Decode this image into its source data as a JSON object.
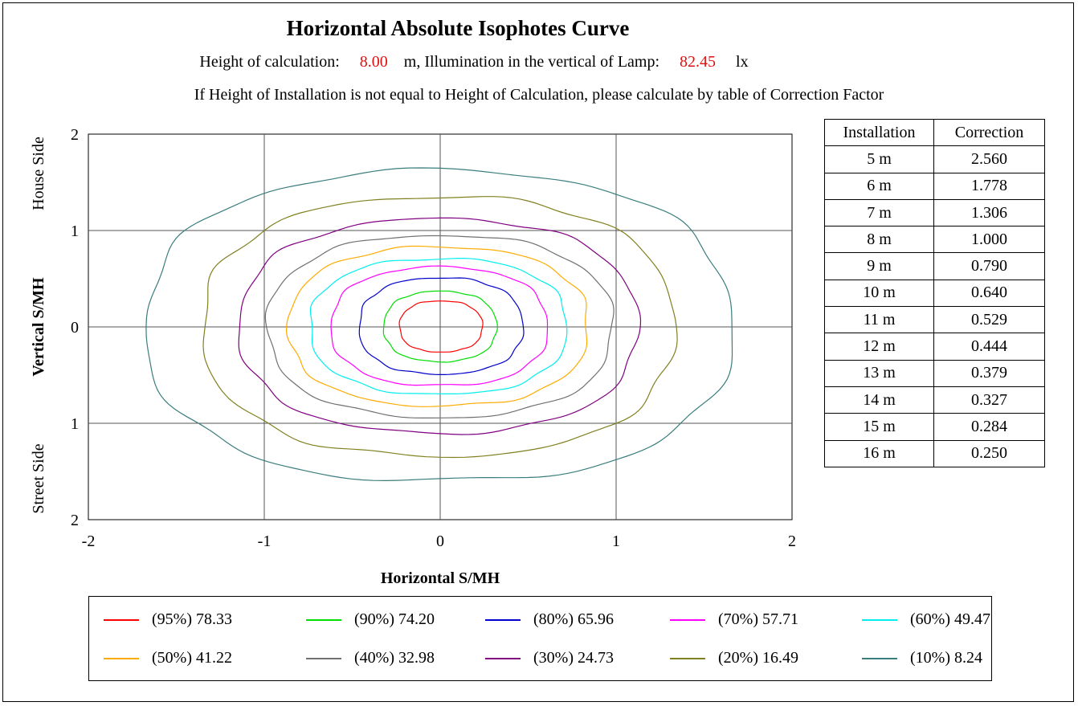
{
  "header": {
    "title": "Horizontal Absolute Isophotes Curve",
    "calc_prefix": "Height of calculation:",
    "calc_height": "8.00",
    "calc_mid": "m, Illumination in the vertical of Lamp:",
    "lamp_illum": "82.45",
    "calc_unit": "lx",
    "note": "If Height of Installation is not equal to Height of Calculation, please calculate by table of Correction Factor"
  },
  "colors": {
    "value_red": "#e01010"
  },
  "chart_data": {
    "type": "line",
    "title": "Horizontal Absolute Isophotes Curve",
    "xlabel": "Horizontal S/MH",
    "ylabel": "Vertical S/MH",
    "ylabel_top": "House Side",
    "ylabel_bottom": "Street Side",
    "xlim": [
      -2,
      2
    ],
    "ylim": [
      -2,
      2
    ],
    "x_ticks": [
      "-2",
      "-1",
      "0",
      "1",
      "2"
    ],
    "y_ticks": [
      "2",
      "1",
      "0",
      "1",
      "2"
    ],
    "grid": true,
    "legend_position": "bottom",
    "series": [
      {
        "name": "(95%) 78.33",
        "color": "#ff0000",
        "left": 0.23,
        "right": 0.24,
        "top": 0.27,
        "bottom": 0.26
      },
      {
        "name": "(90%) 74.20",
        "color": "#00dd00",
        "left": 0.32,
        "right": 0.32,
        "top": 0.37,
        "bottom": 0.36
      },
      {
        "name": "(80%) 65.96",
        "color": "#0000cc",
        "left": 0.46,
        "right": 0.47,
        "top": 0.51,
        "bottom": 0.49
      },
      {
        "name": "(70%) 57.71",
        "color": "#ff00ff",
        "left": 0.62,
        "right": 0.61,
        "top": 0.62,
        "bottom": 0.61
      },
      {
        "name": "(60%) 49.47",
        "color": "#00eeee",
        "left": 0.74,
        "right": 0.72,
        "top": 0.71,
        "bottom": 0.7
      },
      {
        "name": "(50%) 41.22",
        "color": "#ffaa00",
        "left": 0.86,
        "right": 0.84,
        "top": 0.83,
        "bottom": 0.82
      },
      {
        "name": "(40%) 32.98",
        "color": "#707070",
        "left": 0.98,
        "right": 0.98,
        "top": 0.95,
        "bottom": 0.94
      },
      {
        "name": "(30%) 24.73",
        "color": "#800080",
        "left": 1.14,
        "right": 1.12,
        "top": 1.12,
        "bottom": 1.1
      },
      {
        "name": "(20%) 16.49",
        "color": "#808020",
        "left": 1.35,
        "right": 1.33,
        "top": 1.35,
        "bottom": 1.34
      },
      {
        "name": "(10%) 8.24",
        "color": "#3a7d7d",
        "left": 1.67,
        "right": 1.66,
        "top": 1.62,
        "bottom": 1.6
      }
    ]
  },
  "correction_table": {
    "headers": [
      "Installation",
      "Correction"
    ],
    "rows": [
      [
        "5 m",
        "2.560"
      ],
      [
        "6 m",
        "1.778"
      ],
      [
        "7 m",
        "1.306"
      ],
      [
        "8 m",
        "1.000"
      ],
      [
        "9 m",
        "0.790"
      ],
      [
        "10 m",
        "0.640"
      ],
      [
        "11 m",
        "0.529"
      ],
      [
        "12 m",
        "0.444"
      ],
      [
        "13 m",
        "0.379"
      ],
      [
        "14 m",
        "0.327"
      ],
      [
        "15 m",
        "0.284"
      ],
      [
        "16 m",
        "0.250"
      ]
    ]
  }
}
